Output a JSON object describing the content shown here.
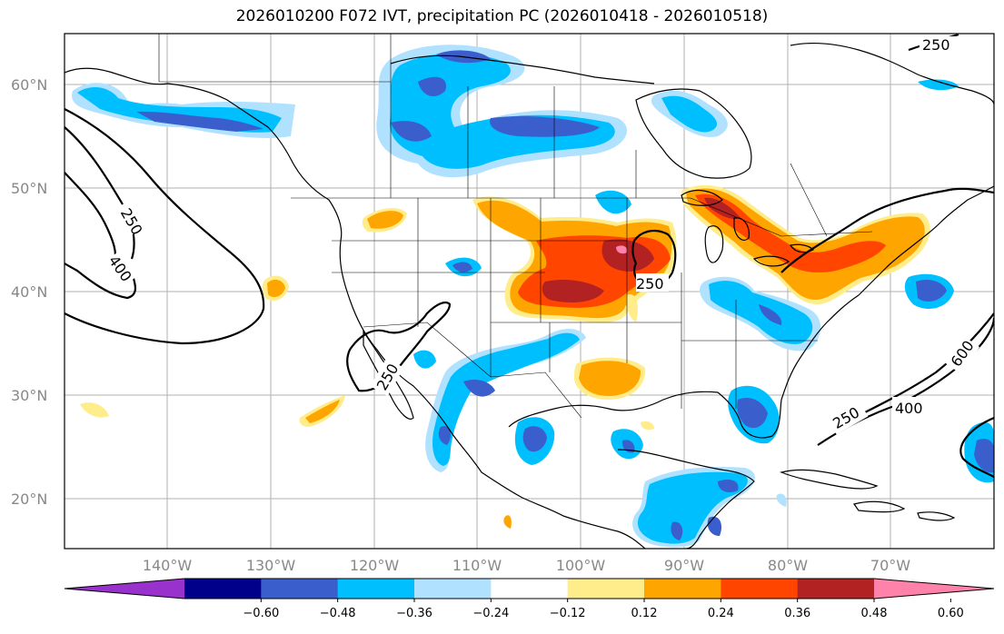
{
  "title": "2026010200 F072 IVT, precipitation PC (2026010418 - 2026010518)",
  "lat_labels": [
    "60°N",
    "50°N",
    "40°N",
    "30°N",
    "20°N"
  ],
  "lon_labels": [
    "140°W",
    "130°W",
    "120°W",
    "110°W",
    "100°W",
    "90°W",
    "80°W",
    "70°W"
  ],
  "colorbar": {
    "ticks": [
      "−0.60",
      "−0.48",
      "−0.36",
      "−0.24",
      "−0.12",
      "0.12",
      "0.24",
      "0.36",
      "0.48",
      "0.60"
    ],
    "colors": [
      "#9932cc",
      "#00008b",
      "#3a5fcd",
      "#00bfff",
      "#b0e2ff",
      "#ffffff",
      "#ffec8b",
      "#ffa500",
      "#ff4500",
      "#b22222",
      "#ff82ab"
    ]
  },
  "contour_labels": [
    "250",
    "400",
    "250",
    "250",
    "600",
    "250",
    "400",
    "250"
  ]
}
